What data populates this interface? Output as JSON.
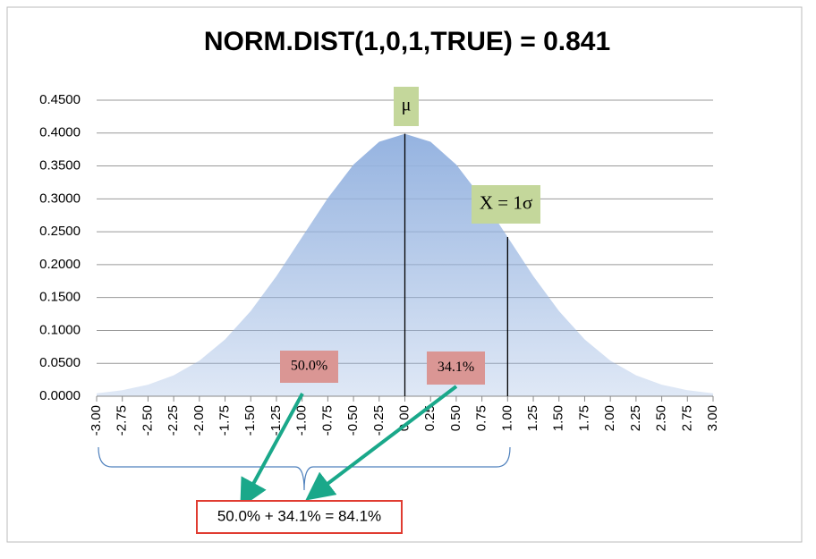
{
  "chart_data": {
    "type": "area",
    "title": "NORM.DIST(1,0,1,TRUE) = 0.841",
    "categories": [
      "-3.00",
      "-2.75",
      "-2.50",
      "-2.25",
      "-2.00",
      "-1.75",
      "-1.50",
      "-1.25",
      "-1.00",
      "-0.75",
      "-0.50",
      "-0.25",
      "0.00",
      "0.25",
      "0.50",
      "0.75",
      "1.00",
      "1.25",
      "1.50",
      "1.75",
      "2.00",
      "2.25",
      "2.50",
      "2.75",
      "3.00"
    ],
    "values": [
      0.0044,
      0.0091,
      0.0175,
      0.0317,
      0.054,
      0.0863,
      0.1295,
      0.1826,
      0.242,
      0.3011,
      0.3521,
      0.3867,
      0.3989,
      0.3867,
      0.3521,
      0.3011,
      0.242,
      0.1826,
      0.1295,
      0.0863,
      0.054,
      0.0317,
      0.0175,
      0.0091,
      0.0044
    ],
    "color": "#95b3e0",
    "ylim": [
      0,
      0.45
    ],
    "yticks": [
      {
        "value": 0,
        "label": "0.0000"
      },
      {
        "value": 0.05,
        "label": "0.0500"
      },
      {
        "value": 0.1,
        "label": "0.1000"
      },
      {
        "value": 0.15,
        "label": "0.1500"
      },
      {
        "value": 0.2,
        "label": "0.2000"
      },
      {
        "value": 0.25,
        "label": "0.2500"
      },
      {
        "value": 0.3,
        "label": "0.3000"
      },
      {
        "value": 0.35,
        "label": "0.3500"
      },
      {
        "value": 0.4,
        "label": "0.4000"
      },
      {
        "value": 0.45,
        "label": "0.4500"
      }
    ],
    "grid": true,
    "annotations": [
      "μ",
      "X = 1σ",
      "50.0%",
      "34.1%",
      "50.0% + 34.1% = 84.1%"
    ]
  }
}
